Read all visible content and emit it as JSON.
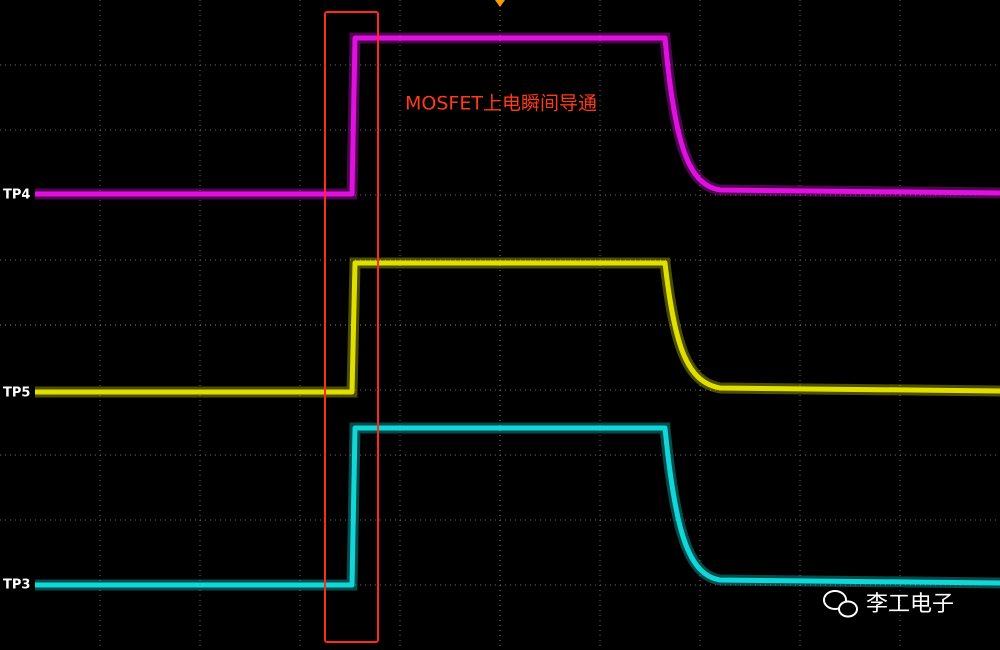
{
  "channels": [
    {
      "label": "TP4"
    },
    {
      "label": "TP5"
    },
    {
      "label": "TP3"
    }
  ],
  "annotation": "MOSFET上电瞬间导通",
  "watermark": "李工电子"
}
